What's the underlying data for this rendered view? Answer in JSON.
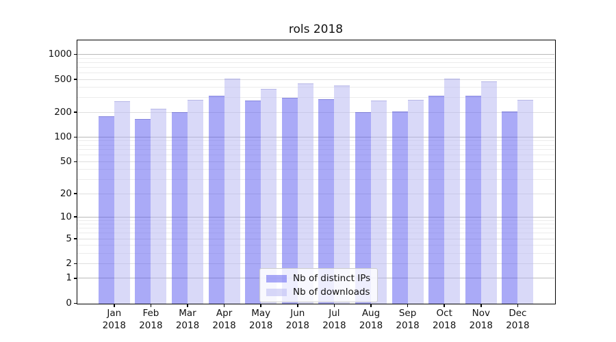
{
  "title": "rols 2018",
  "legend": {
    "items": [
      {
        "label": "Nb of distinct IPs",
        "color": "rgba(85,85,240,0.5)"
      },
      {
        "label": "Nb of downloads",
        "color": "rgba(179,179,241,0.5)"
      }
    ]
  },
  "colors": {
    "bar_distinct_ips": "rgba(85,85,240,0.5)",
    "bar_downloads": "rgba(179,179,241,0.5)",
    "bar_ips_flat_hex": "#aaaaf7",
    "bar_downloads_flat_hex": "#d9d9f8",
    "grid_major": "#b8b8b8",
    "grid_mid": "#dedede",
    "grid_minor": "#ececec",
    "spine": "#000000",
    "text": "#111111"
  },
  "chart_data": {
    "type": "bar",
    "title": "rols 2018",
    "categories": [
      "Jan 2018",
      "Feb 2018",
      "Mar 2018",
      "Apr 2018",
      "May 2018",
      "Jun 2018",
      "Jul 2018",
      "Aug 2018",
      "Sep 2018",
      "Oct 2018",
      "Nov 2018",
      "Dec 2018"
    ],
    "series": [
      {
        "name": "Nb of distinct IPs",
        "values": [
          180,
          165,
          200,
          315,
          275,
          300,
          290,
          200,
          205,
          315,
          315,
          205
        ]
      },
      {
        "name": "Nb of downloads",
        "values": [
          270,
          220,
          280,
          505,
          385,
          445,
          420,
          275,
          285,
          510,
          470,
          280
        ]
      }
    ],
    "xlabel": "",
    "ylabel": "",
    "yscale": "log1p",
    "yticks": [
      1000,
      500,
      200,
      100,
      50,
      20,
      10,
      5,
      2,
      1,
      0
    ],
    "ylim": [
      0,
      1450
    ],
    "grid": true,
    "legend_position": "lower center"
  }
}
